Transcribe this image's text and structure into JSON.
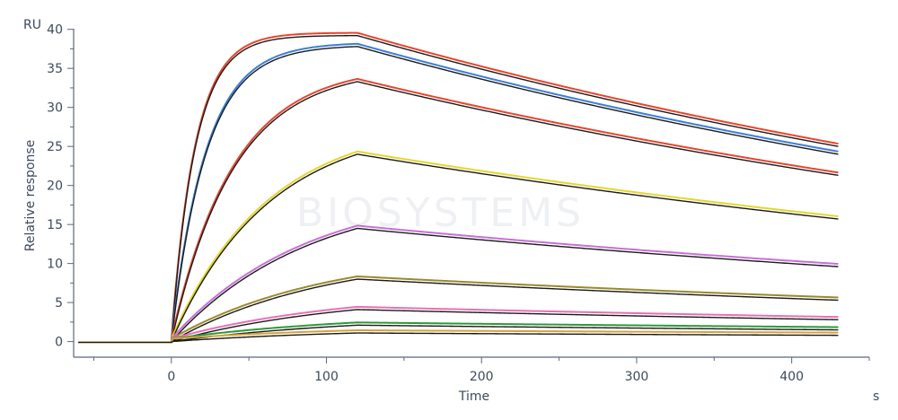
{
  "chart_data": {
    "type": "line",
    "title": "",
    "xlabel": "Time",
    "ylabel": "Relative response",
    "y_unit": "RU",
    "x_unit": "s",
    "xlim": [
      -63,
      450
    ],
    "ylim": [
      -2,
      41
    ],
    "x_ticks": [
      0,
      100,
      200,
      300,
      400
    ],
    "y_ticks": [
      0,
      5,
      10,
      15,
      20,
      25,
      30,
      35,
      40
    ],
    "grid": false,
    "legend": "none",
    "watermark": "BIOSYSTEMS",
    "fit_color": "#1a1a1a",
    "baseline_start": -60,
    "association_end": 120,
    "dissociation_end": 430,
    "series": [
      {
        "color": "#e8452c",
        "values": [
          [
            -60,
            -0.1
          ],
          [
            0,
            0
          ],
          [
            120,
            39.2
          ],
          [
            430,
            25.0
          ]
        ]
      },
      {
        "color": "#3b7fd6",
        "values": [
          [
            -60,
            -0.1
          ],
          [
            0,
            0
          ],
          [
            120,
            37.8
          ],
          [
            430,
            24.0
          ]
        ]
      },
      {
        "color": "#e8452c",
        "values": [
          [
            -60,
            -0.1
          ],
          [
            0,
            0
          ],
          [
            120,
            33.3
          ],
          [
            430,
            21.3
          ]
        ]
      },
      {
        "color": "#e6d62a",
        "values": [
          [
            -60,
            -0.1
          ],
          [
            0,
            0
          ],
          [
            120,
            24.0
          ],
          [
            430,
            15.7
          ]
        ]
      },
      {
        "color": "#c86fd6",
        "values": [
          [
            -60,
            -0.1
          ],
          [
            0,
            0
          ],
          [
            120,
            14.5
          ],
          [
            430,
            9.6
          ]
        ]
      },
      {
        "color": "#9c8a28",
        "values": [
          [
            -60,
            -0.1
          ],
          [
            0,
            0
          ],
          [
            120,
            8.0
          ],
          [
            430,
            5.3
          ]
        ]
      },
      {
        "color": "#e86fb8",
        "values": [
          [
            -60,
            -0.1
          ],
          [
            0,
            0
          ],
          [
            120,
            4.1
          ],
          [
            430,
            2.8
          ]
        ]
      },
      {
        "color": "#2e9a3a",
        "values": [
          [
            -60,
            -0.1
          ],
          [
            0,
            0
          ],
          [
            120,
            2.1
          ],
          [
            430,
            1.5
          ]
        ]
      },
      {
        "color": "#d8a23a",
        "values": [
          [
            -60,
            -0.1
          ],
          [
            0,
            0
          ],
          [
            120,
            1.1
          ],
          [
            430,
            0.8
          ]
        ]
      }
    ],
    "rates": [
      0.065,
      0.045,
      0.025,
      0.016,
      0.0115,
      0.01,
      0.009,
      0.008,
      0.008
    ]
  }
}
